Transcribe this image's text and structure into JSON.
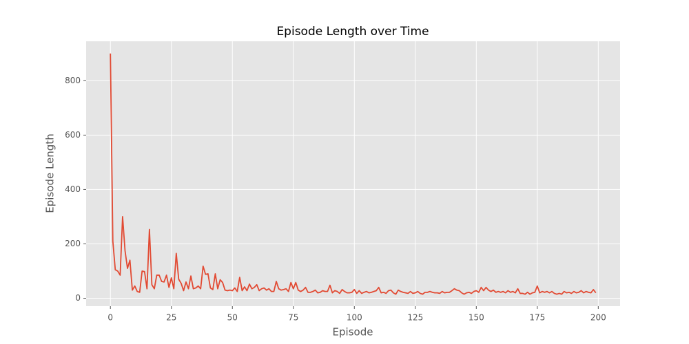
{
  "chart_data": {
    "type": "line",
    "title": "Episode Length over Time",
    "x_label": "Episode",
    "y_label": "Episode Length",
    "x": [
      0,
      1,
      2,
      3,
      4,
      5,
      6,
      7,
      8,
      9,
      10,
      11,
      12,
      13,
      14,
      15,
      16,
      17,
      18,
      19,
      20,
      21,
      22,
      23,
      24,
      25,
      26,
      27,
      28,
      29,
      30,
      31,
      32,
      33,
      34,
      35,
      36,
      37,
      38,
      39,
      40,
      41,
      42,
      43,
      44,
      45,
      46,
      47,
      48,
      49,
      50,
      51,
      52,
      53,
      54,
      55,
      56,
      57,
      58,
      59,
      60,
      61,
      62,
      63,
      64,
      65,
      66,
      67,
      68,
      69,
      70,
      71,
      72,
      73,
      74,
      75,
      76,
      77,
      78,
      79,
      80,
      81,
      82,
      83,
      84,
      85,
      86,
      87,
      88,
      89,
      90,
      91,
      92,
      93,
      94,
      95,
      96,
      97,
      98,
      99,
      100,
      101,
      102,
      103,
      104,
      105,
      106,
      107,
      108,
      109,
      110,
      111,
      112,
      113,
      114,
      115,
      116,
      117,
      118,
      119,
      120,
      121,
      122,
      123,
      124,
      125,
      126,
      127,
      128,
      129,
      130,
      131,
      132,
      133,
      134,
      135,
      136,
      137,
      138,
      139,
      140,
      141,
      142,
      143,
      144,
      145,
      146,
      147,
      148,
      149,
      150,
      151,
      152,
      153,
      154,
      155,
      156,
      157,
      158,
      159,
      160,
      161,
      162,
      163,
      164,
      165,
      166,
      167,
      168,
      169,
      170,
      171,
      172,
      173,
      174,
      175,
      176,
      177,
      178,
      179,
      180,
      181,
      182,
      183,
      184,
      185,
      186,
      187,
      188,
      189,
      190,
      191,
      192,
      193,
      194,
      195,
      196,
      197,
      198,
      199
    ],
    "series": [
      {
        "name": "Episode Length",
        "color": "#E24A33",
        "values": [
          900,
          210,
          105,
          100,
          85,
          300,
          175,
          110,
          140,
          30,
          45,
          25,
          22,
          100,
          98,
          35,
          253,
          50,
          35,
          85,
          85,
          62,
          60,
          85,
          40,
          75,
          35,
          165,
          70,
          55,
          28,
          60,
          35,
          82,
          35,
          38,
          45,
          35,
          118,
          88,
          90,
          38,
          32,
          90,
          35,
          68,
          58,
          30,
          28,
          30,
          28,
          38,
          25,
          77,
          28,
          42,
          28,
          52,
          35,
          40,
          50,
          28,
          35,
          38,
          30,
          35,
          25,
          25,
          62,
          35,
          30,
          32,
          35,
          25,
          58,
          35,
          58,
          30,
          25,
          30,
          40,
          22,
          22,
          25,
          30,
          20,
          22,
          28,
          25,
          25,
          48,
          20,
          28,
          25,
          18,
          32,
          25,
          20,
          20,
          22,
          32,
          18,
          28,
          18,
          22,
          25,
          20,
          22,
          25,
          28,
          40,
          20,
          22,
          18,
          28,
          30,
          20,
          15,
          30,
          25,
          22,
          20,
          18,
          25,
          18,
          20,
          25,
          18,
          15,
          22,
          22,
          25,
          22,
          20,
          20,
          18,
          25,
          20,
          22,
          22,
          28,
          35,
          30,
          28,
          20,
          15,
          20,
          22,
          18,
          25,
          28,
          22,
          40,
          28,
          40,
          30,
          25,
          30,
          22,
          25,
          22,
          25,
          20,
          28,
          22,
          25,
          20,
          35,
          18,
          18,
          15,
          22,
          15,
          20,
          22,
          45,
          20,
          25,
          22,
          25,
          20,
          25,
          18,
          15,
          18,
          15,
          25,
          20,
          22,
          18,
          25,
          20,
          22,
          28,
          20,
          25,
          22,
          20,
          32,
          20
        ]
      }
    ],
    "xlim": [
      -9.95,
      208.95
    ],
    "ylim": [
      -29,
      945
    ],
    "xticks": [
      0,
      25,
      50,
      75,
      100,
      125,
      150,
      175,
      200
    ],
    "yticks": [
      0,
      200,
      400,
      600,
      800
    ],
    "grid": true
  }
}
